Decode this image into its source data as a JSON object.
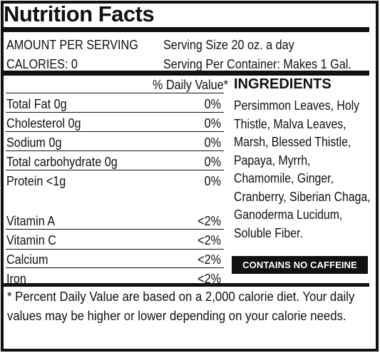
{
  "title": "Nutrition Facts",
  "serving": {
    "amount_label": "AMOUNT PER SERVING",
    "size": "Serving Size 20 oz. a day",
    "calories": "CALORIES: 0",
    "per_container": "Serving Per Container: Makes 1 Gal."
  },
  "daily_value_header": "% Daily Value*",
  "nutrients": [
    {
      "name": "Total Fat 0g",
      "value": "0%"
    },
    {
      "name": "Cholesterol 0g",
      "value": "0%"
    },
    {
      "name": "Sodium 0g",
      "value": "0%"
    },
    {
      "name": "Total carbohydrate 0g",
      "value": "0%"
    },
    {
      "name": "Protein <1g",
      "value": "0%"
    }
  ],
  "vitamins": [
    {
      "name": "Vitamin A",
      "value": "<2%"
    },
    {
      "name": "Vitamin C",
      "value": "<2%"
    },
    {
      "name": "Calcium",
      "value": "<2%"
    },
    {
      "name": "Iron",
      "value": "<2%"
    }
  ],
  "ingredients": {
    "heading": "INGREDIENTS",
    "text": "Persimmon Leaves, Holy Thistle, Malva Leaves, Marsh, Blessed Thistle, Papaya, Myrrh, Chamomile, Ginger, Cranberry, Siberian Chaga, Ganoderma Lucidum, Soluble Fiber."
  },
  "badge": "CONTAINS NO CAFFEINE",
  "footnote": "* Percent Daily Value are based on a 2,000 calorie diet. Your daily values may be higher or lower depending on your calorie needs."
}
